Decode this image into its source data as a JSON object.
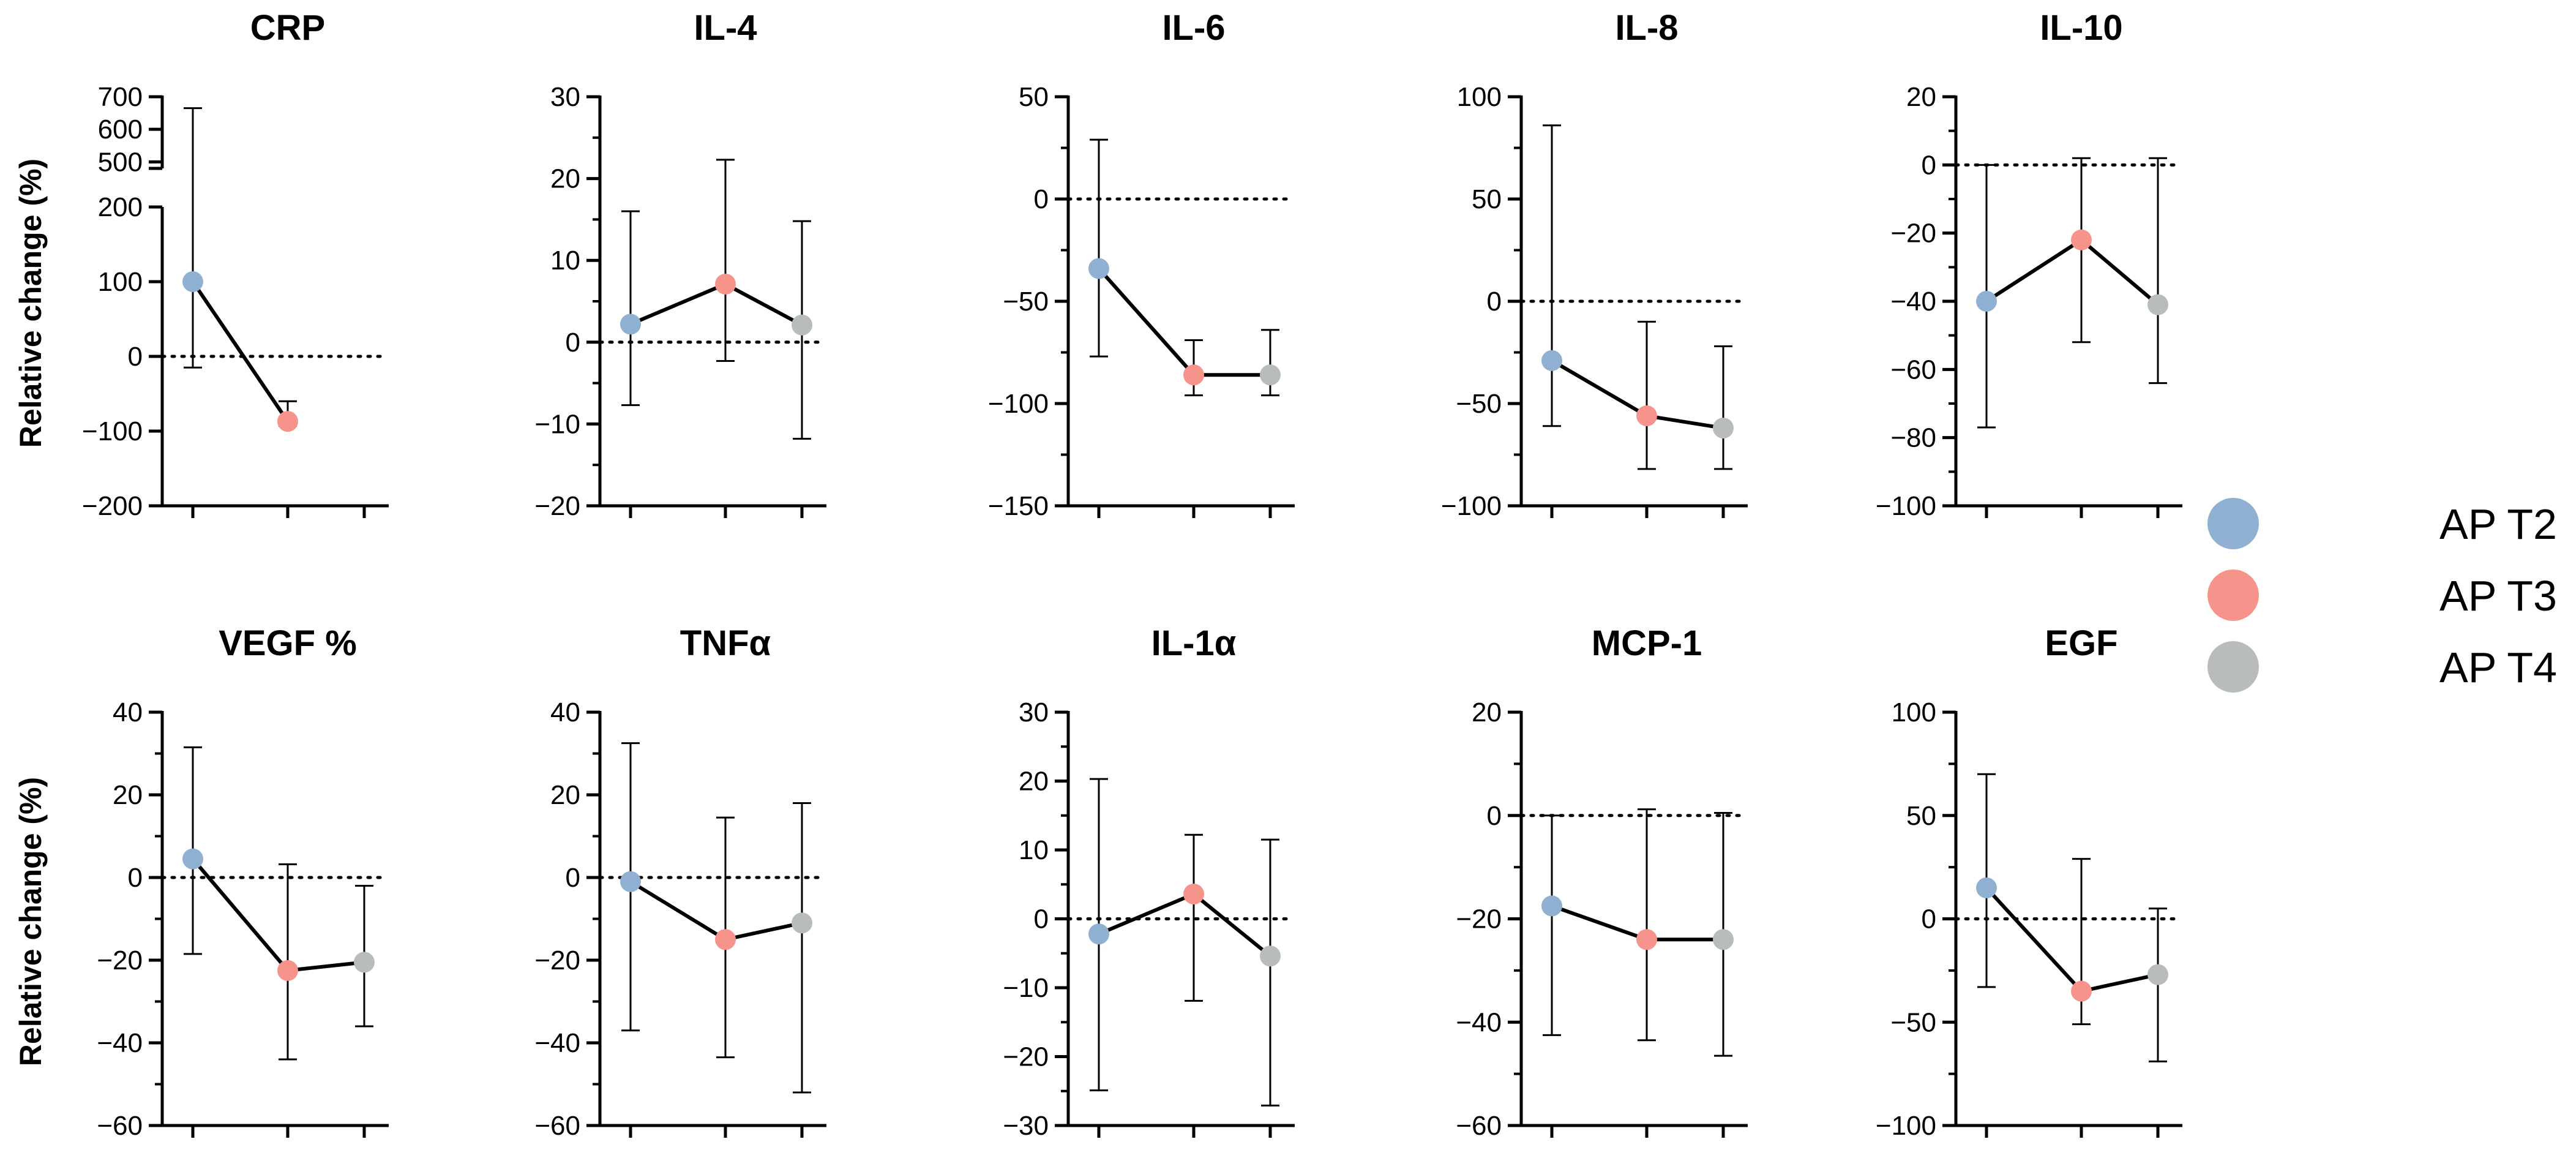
{
  "chart_data": {
    "type": "line",
    "ylabel": "Relative change (%)",
    "legend": {
      "placement": "right",
      "entries": [
        {
          "name": "AP T2",
          "color": "#8fb0d1"
        },
        {
          "name": "AP T3",
          "color": "#f6948c"
        },
        {
          "name": "AP T4",
          "color": "#b8bcbd"
        }
      ]
    },
    "panels": [
      {
        "title": "CRP",
        "ylim": [
          -200,
          200
        ],
        "ticks": [
          -200,
          -100,
          0,
          100,
          200
        ],
        "axis_break": {
          "upper_ylim": [
            480,
            700
          ],
          "upper_ticks": [
            500,
            600,
            700
          ]
        },
        "series": [
          {
            "name": "AP T2",
            "mean": 100,
            "err_low": -15,
            "err_high": 665
          },
          {
            "name": "AP T3",
            "mean": -87,
            "err_low": -93,
            "err_high": -60
          }
        ]
      },
      {
        "title": "IL-4",
        "ylim": [
          -20,
          30
        ],
        "ticks": [
          -20,
          -10,
          0,
          10,
          20,
          30
        ],
        "series": [
          {
            "name": "AP T2",
            "mean": 2.2,
            "err_low": -7.7,
            "err_high": 16
          },
          {
            "name": "AP T3",
            "mean": 7.1,
            "err_low": -2.3,
            "err_high": 22.3
          },
          {
            "name": "AP T4",
            "mean": 2.1,
            "err_low": -11.8,
            "err_high": 14.8
          }
        ]
      },
      {
        "title": "IL-6",
        "ylim": [
          -150,
          50
        ],
        "ticks": [
          -150,
          -100,
          -50,
          0,
          50
        ],
        "series": [
          {
            "name": "AP T2",
            "mean": -34,
            "err_low": -77,
            "err_high": 29
          },
          {
            "name": "AP T3",
            "mean": -86,
            "err_low": -96,
            "err_high": -69
          },
          {
            "name": "AP T4",
            "mean": -86,
            "err_low": -96,
            "err_high": -64
          }
        ]
      },
      {
        "title": "IL-8",
        "ylim": [
          -100,
          100
        ],
        "ticks": [
          -100,
          -50,
          0,
          50,
          100
        ],
        "series": [
          {
            "name": "AP T2",
            "mean": -29,
            "err_low": -61,
            "err_high": 86
          },
          {
            "name": "AP T3",
            "mean": -56,
            "err_low": -82,
            "err_high": -10
          },
          {
            "name": "AP T4",
            "mean": -62,
            "err_low": -82,
            "err_high": -22
          }
        ]
      },
      {
        "title": "IL-10",
        "ylim": [
          -100,
          20
        ],
        "ticks": [
          -100,
          -80,
          -60,
          -40,
          -20,
          0,
          20
        ],
        "series": [
          {
            "name": "AP T2",
            "mean": -40,
            "err_low": -77,
            "err_high": 0
          },
          {
            "name": "AP T3",
            "mean": -22,
            "err_low": -52,
            "err_high": 2
          },
          {
            "name": "AP T4",
            "mean": -41,
            "err_low": -64,
            "err_high": 2
          }
        ]
      },
      {
        "title": "VEGF %",
        "ylim": [
          -60,
          40
        ],
        "ticks": [
          -60,
          -40,
          -20,
          0,
          20,
          40
        ],
        "series": [
          {
            "name": "AP T2",
            "mean": 4.5,
            "err_low": -18.5,
            "err_high": 31.5
          },
          {
            "name": "AP T3",
            "mean": -22.5,
            "err_low": -44,
            "err_high": 3.2
          },
          {
            "name": "AP T4",
            "mean": -20.5,
            "err_low": -36,
            "err_high": -2
          }
        ]
      },
      {
        "title": "TNFα",
        "ylim": [
          -60,
          40
        ],
        "ticks": [
          -60,
          -40,
          -20,
          0,
          20,
          40
        ],
        "series": [
          {
            "name": "AP T2",
            "mean": -1,
            "err_low": -37,
            "err_high": 32.5
          },
          {
            "name": "AP T3",
            "mean": -15,
            "err_low": -43.5,
            "err_high": 14.5
          },
          {
            "name": "AP T4",
            "mean": -11,
            "err_low": -52,
            "err_high": 18
          }
        ]
      },
      {
        "title": "IL-1α",
        "ylim": [
          -30,
          30
        ],
        "ticks": [
          -30,
          -20,
          -10,
          0,
          10,
          20,
          30
        ],
        "series": [
          {
            "name": "AP T2",
            "mean": -2.2,
            "err_low": -24.9,
            "err_high": 20.3
          },
          {
            "name": "AP T3",
            "mean": 3.6,
            "err_low": -11.9,
            "err_high": 12.2
          },
          {
            "name": "AP T4",
            "mean": -5.4,
            "err_low": -27.1,
            "err_high": 11.5
          }
        ]
      },
      {
        "title": "MCP-1",
        "ylim": [
          -60,
          20
        ],
        "ticks": [
          -60,
          -40,
          -20,
          0,
          20
        ],
        "series": [
          {
            "name": "AP T2",
            "mean": -17.5,
            "err_low": -42.5,
            "err_high": 0
          },
          {
            "name": "AP T3",
            "mean": -24,
            "err_low": -43.5,
            "err_high": 1.2
          },
          {
            "name": "AP T4",
            "mean": -24,
            "err_low": -46.5,
            "err_high": 0.5
          }
        ]
      },
      {
        "title": "EGF",
        "ylim": [
          -100,
          100
        ],
        "ticks": [
          -100,
          -50,
          0,
          50,
          100
        ],
        "series": [
          {
            "name": "AP T2",
            "mean": 15,
            "err_low": -33,
            "err_high": 70
          },
          {
            "name": "AP T3",
            "mean": -35,
            "err_low": -51,
            "err_high": 29
          },
          {
            "name": "AP T4",
            "mean": -27,
            "err_low": -69,
            "err_high": 5
          }
        ]
      }
    ]
  }
}
